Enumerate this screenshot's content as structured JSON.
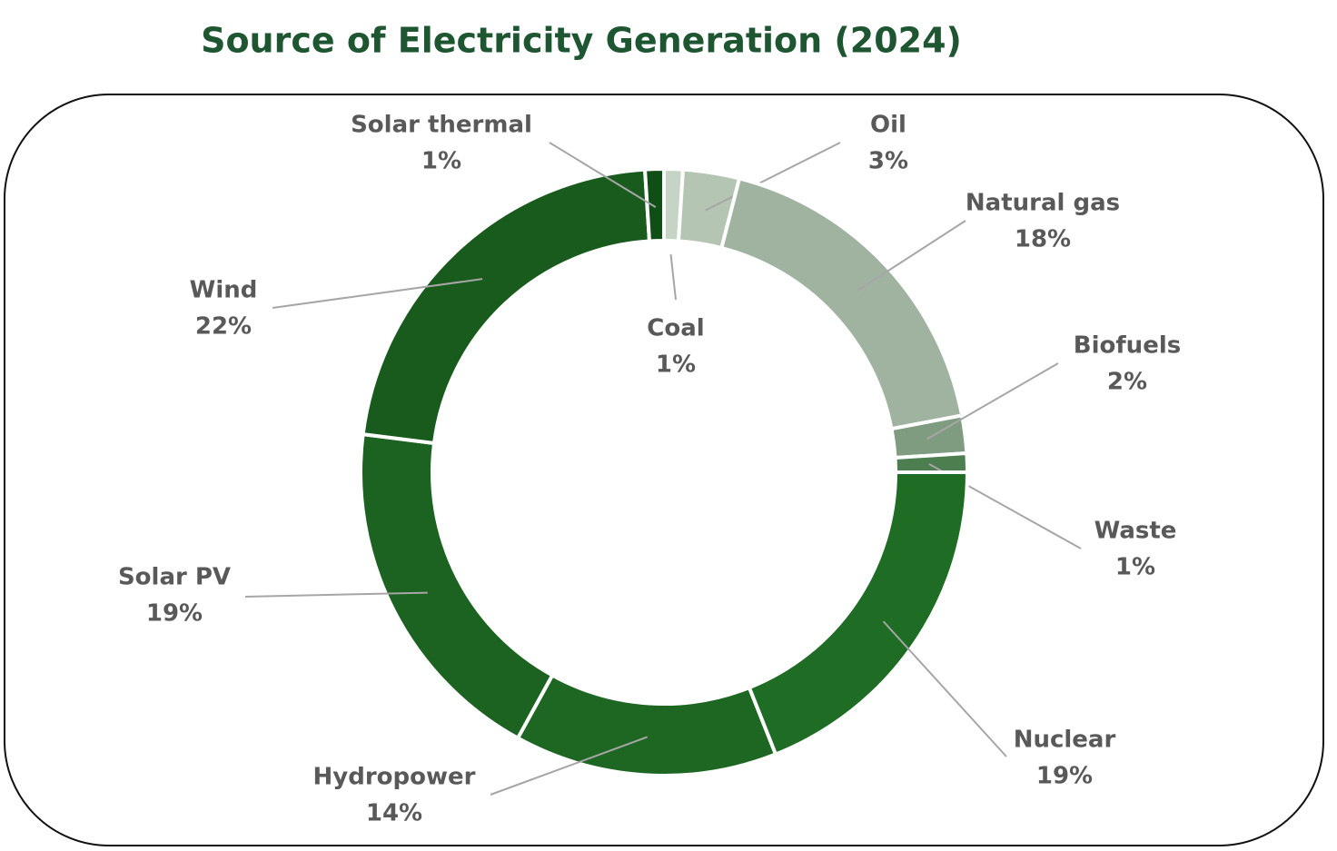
{
  "chart_data": {
    "type": "donut",
    "title": "Source of Electricity Generation (2024)",
    "categories": [
      "Coal",
      "Oil",
      "Natural gas",
      "Biofuels",
      "Waste",
      "Nuclear",
      "Hydropower",
      "Solar PV",
      "Wind",
      "Solar thermal"
    ],
    "values": [
      1,
      3,
      18,
      2,
      1,
      19,
      14,
      19,
      22,
      1
    ],
    "value_labels": [
      "1%",
      "3%",
      "18%",
      "2%",
      "1%",
      "19%",
      "14%",
      "19%",
      "22%",
      "1%"
    ],
    "colors": [
      "#c6d4c6",
      "#b4c5b4",
      "#a0b3a0",
      "#7f9c80",
      "#4d7e50",
      "#1f6c24",
      "#1e6723",
      "#1c6220",
      "#185b1d",
      "#0f4e15"
    ]
  }
}
